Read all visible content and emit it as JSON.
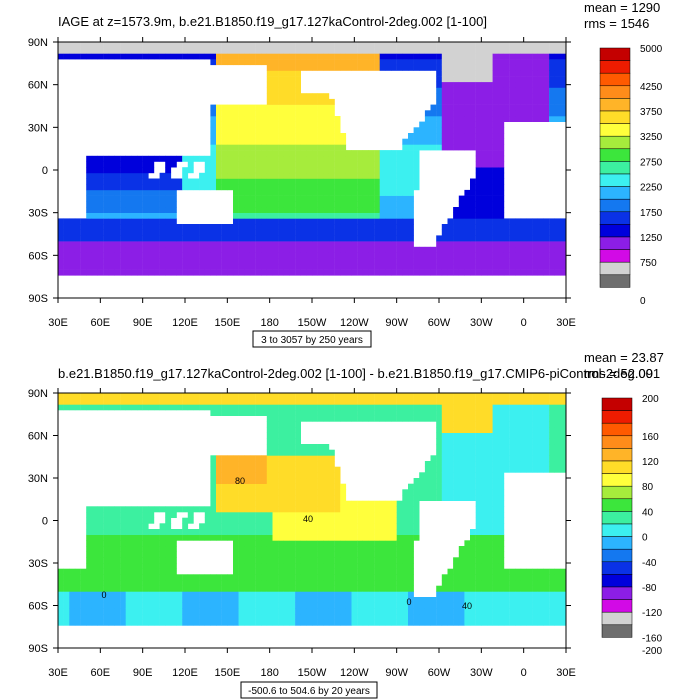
{
  "chart_data": [
    {
      "type": "heatmap",
      "title": "IAGE at z=1573.9m, b.e21.B1850.f19_g17.127kaControl-2deg.002 [1-100]",
      "stats": [
        "mean = 1290",
        "rms = 1546"
      ],
      "x_ticks": [
        "30E",
        "60E",
        "90E",
        "120E",
        "150E",
        "180",
        "150W",
        "120W",
        "90W",
        "60W",
        "30W",
        "0",
        "30E"
      ],
      "y_ticks": [
        "90N",
        "60N",
        "30N",
        "0",
        "30S",
        "60S",
        "90S"
      ],
      "xlim_deg_east": [
        30,
        390
      ],
      "ylim_deg_north": [
        -90,
        90
      ],
      "contour_info": "3 to 3057 by 250 years",
      "colorbar": {
        "labels": [
          "5000",
          "4250",
          "3750",
          "3250",
          "2750",
          "2250",
          "1750",
          "1250",
          "750",
          "0"
        ],
        "colors": [
          "#c40000",
          "#ee1c00",
          "#ff5a00",
          "#ff8c1a",
          "#ffb428",
          "#ffdc28",
          "#ffff3c",
          "#a6ec3c",
          "#3ce63c",
          "#3cf0a0",
          "#3cf0f0",
          "#2cb4ff",
          "#1478f0",
          "#0a32e6",
          "#0000dc",
          "#8c1ee6",
          "#d20ae6",
          "#d2d2d2",
          "#6e6e6e"
        ]
      }
    },
    {
      "type": "heatmap",
      "title": "b.e21.B1850.f19_g17.127kaControl-2deg.002 [1-100] - b.e21.B1850.f19_g17.CMIP6-piControl-2deg.001",
      "stats": [
        "mean = 23.87",
        "rms = 52.09"
      ],
      "x_ticks": [
        "30E",
        "60E",
        "90E",
        "120E",
        "150E",
        "180",
        "150W",
        "120W",
        "90W",
        "60W",
        "30W",
        "0",
        "30E"
      ],
      "y_ticks": [
        "90N",
        "60N",
        "30N",
        "0",
        "30S",
        "60S",
        "90S"
      ],
      "xlim_deg_east": [
        30,
        390
      ],
      "ylim_deg_north": [
        -90,
        90
      ],
      "contour_info": "-500.6 to 504.6 by 20 years",
      "contour_labels": [
        "80",
        "40",
        "0",
        "0",
        "40"
      ],
      "colorbar": {
        "labels": [
          "200",
          "160",
          "120",
          "80",
          "40",
          "0",
          "-40",
          "-80",
          "-120",
          "-160",
          "-200"
        ],
        "colors": [
          "#c40000",
          "#ee1c00",
          "#ff5a00",
          "#ff8c1a",
          "#ffb428",
          "#ffdc28",
          "#ffff3c",
          "#a6ec3c",
          "#3ce63c",
          "#3cf0a0",
          "#3cf0f0",
          "#2cb4ff",
          "#1478f0",
          "#0a32e6",
          "#0000dc",
          "#8c1ee6",
          "#d20ae6",
          "#d2d2d2",
          "#6e6e6e"
        ]
      }
    }
  ]
}
